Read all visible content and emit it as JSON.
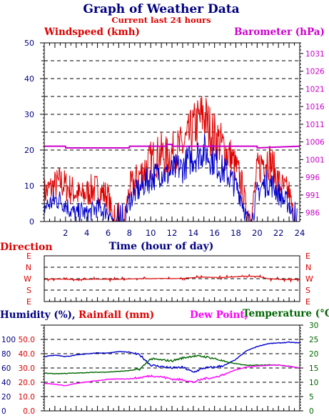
{
  "header": {
    "title": "Graph of Weather Data",
    "subtitle": "Current last 24 hours"
  },
  "colors": {
    "navy": "#000080",
    "wind": "#dd0000",
    "baro": "#cc00cc",
    "humidity": "#0000cc",
    "temp": "#006600",
    "dew": "#ff00ff",
    "grid": "#000000"
  },
  "chart_data": [
    {
      "type": "line",
      "panel": "wind-barometer",
      "left_label": "Windspeed (kmh)",
      "right_label": "Barometer (hPa)",
      "xlabel": "Time (hour of day)",
      "xlim": [
        0,
        24
      ],
      "x_ticks": [
        "2",
        "4",
        "6",
        "8",
        "10",
        "12",
        "14",
        "16",
        "18",
        "20",
        "22",
        "24"
      ],
      "ylim_left": [
        0,
        50
      ],
      "y_ticks_left": [
        "0",
        "10",
        "20",
        "30",
        "40",
        "50"
      ],
      "ylim_right": [
        983.5,
        1034
      ],
      "y_ticks_right": [
        "986",
        "991",
        "996",
        "1001",
        "1006",
        "1011",
        "1016",
        "1021",
        "1026",
        "1031"
      ],
      "series": [
        {
          "name": "Windspeed (kmh)",
          "axis": "left",
          "kind": "gust",
          "x": [
            0,
            0.5,
            1,
            1.5,
            2,
            2.5,
            3,
            3.5,
            4,
            4.5,
            5,
            5.5,
            6,
            6.5,
            7,
            7.5,
            8,
            8.5,
            9,
            9.5,
            10,
            10.5,
            11,
            11.5,
            12,
            12.5,
            13,
            13.5,
            14,
            14.5,
            15,
            15.5,
            16,
            16.5,
            17,
            17.5,
            18,
            18.5,
            19,
            19.5,
            20,
            20.5,
            21,
            21.5,
            22,
            22.5,
            23,
            23.5
          ],
          "values": [
            8,
            9,
            10,
            11,
            10,
            9,
            8,
            7,
            8,
            9,
            9,
            8,
            7,
            0,
            0,
            0,
            9,
            11,
            13,
            15,
            17,
            18,
            19,
            18,
            19,
            20,
            21,
            23,
            26,
            28,
            30,
            26,
            24,
            22,
            20,
            18,
            15,
            11,
            3,
            2,
            14,
            17,
            18,
            15,
            11,
            9,
            8,
            0
          ]
        },
        {
          "name": "Windspeed avg (kmh)",
          "axis": "left",
          "kind": "average",
          "x": [
            0,
            0.5,
            1,
            1.5,
            2,
            2.5,
            3,
            3.5,
            4,
            4.5,
            5,
            5.5,
            6,
            6.5,
            7,
            7.5,
            8,
            8.5,
            9,
            9.5,
            10,
            10.5,
            11,
            11.5,
            12,
            12.5,
            13,
            13.5,
            14,
            14.5,
            15,
            15.5,
            16,
            16.5,
            17,
            17.5,
            18,
            18.5,
            19,
            19.5,
            20,
            20.5,
            21,
            21.5,
            22,
            22.5,
            23,
            23.5
          ],
          "values": [
            4,
            5,
            6,
            6,
            5,
            3,
            2,
            3,
            2,
            3,
            4,
            3,
            3,
            0,
            0,
            0,
            6,
            8,
            9,
            11,
            12,
            13,
            14,
            13,
            14,
            15,
            15,
            17,
            18,
            19,
            20,
            18,
            17,
            15,
            14,
            12,
            10,
            7,
            1,
            0,
            8,
            10,
            11,
            10,
            8,
            6,
            5,
            0
          ]
        },
        {
          "name": "Barometer (hPa)",
          "axis": "right",
          "kind": "pressure",
          "x": [
            0,
            2,
            2.01,
            8,
            8.01,
            11.5,
            11.51,
            12,
            12.01,
            20,
            20.01,
            24
          ],
          "values": [
            1004.8,
            1004.8,
            1004.3,
            1004.3,
            1004.8,
            1004.8,
            1005.3,
            1005.3,
            1004.8,
            1004.8,
            1004.3,
            1004.8
          ]
        }
      ]
    },
    {
      "type": "line",
      "panel": "direction",
      "ylabel": "Direction",
      "xlim": [
        0,
        24
      ],
      "y_categories": [
        "E",
        "S",
        "W",
        "N",
        "E"
      ],
      "series": [
        {
          "name": "Direction",
          "unit": "degrees",
          "x": [
            0,
            1,
            2,
            3,
            4,
            5,
            6,
            7,
            8,
            9,
            10,
            11,
            12,
            13,
            14,
            15,
            16,
            17,
            18,
            19,
            20,
            21,
            22,
            23,
            24
          ],
          "values": [
            265,
            268,
            265,
            262,
            265,
            266,
            265,
            265,
            268,
            270,
            270,
            272,
            270,
            272,
            278,
            282,
            280,
            280,
            285,
            290,
            288,
            270,
            265,
            262,
            265
          ]
        }
      ]
    },
    {
      "type": "line",
      "panel": "humidity-rain-temp",
      "labels": {
        "humidity": "Humidity (%),",
        "rain": "Rainfall (mm)",
        "dew": "Dew Point,",
        "temp": "Temperature (°C)"
      },
      "xlim": [
        0,
        24
      ],
      "ylim_humidity": [
        0,
        120
      ],
      "ticks_humidity": [
        "0",
        "20",
        "40",
        "60",
        "80",
        "100"
      ],
      "ylim_rain": [
        0,
        60
      ],
      "ticks_rain": [
        "0.0",
        "10.0",
        "20.0",
        "30.0",
        "40.0",
        "50.0"
      ],
      "ylim_temp": [
        0,
        30
      ],
      "ticks_temp": [
        "0",
        "5",
        "10",
        "15",
        "20",
        "25",
        "30"
      ],
      "series": [
        {
          "name": "Humidity (%)",
          "axis": "humidity",
          "x": [
            0,
            1,
            2,
            3,
            4,
            5,
            6,
            7,
            8,
            9,
            10,
            11,
            12,
            13,
            14,
            15,
            16,
            17,
            18,
            19,
            20,
            21,
            22,
            23,
            24
          ],
          "values": [
            76,
            78,
            76,
            78,
            80,
            81,
            81,
            83,
            82,
            78,
            64,
            62,
            60,
            61,
            54,
            60,
            61,
            64,
            72,
            84,
            90,
            94,
            95,
            96,
            95
          ]
        },
        {
          "name": "Temperature (°C)",
          "axis": "temp",
          "x": [
            0,
            1,
            2,
            3,
            4,
            5,
            6,
            7,
            8,
            9,
            10,
            11,
            12,
            13,
            14,
            15,
            16,
            17,
            18,
            19,
            20,
            21,
            22,
            23,
            24
          ],
          "values": [
            13.2,
            13.0,
            13.1,
            13.2,
            13.4,
            13.5,
            13.6,
            13.8,
            14.1,
            14.6,
            18.2,
            17.8,
            17.5,
            18.5,
            19.2,
            19.0,
            18.3,
            17.2,
            16.5,
            16.0,
            16.0,
            16.1,
            16.0,
            15.6,
            15.0
          ]
        },
        {
          "name": "Dew Point",
          "axis": "temp",
          "x": [
            0,
            1,
            2,
            3,
            4,
            5,
            6,
            7,
            8,
            9,
            10,
            11,
            12,
            13,
            14,
            15,
            16,
            17,
            18,
            19,
            20,
            21,
            22,
            23,
            24
          ],
          "values": [
            9.7,
            9.3,
            8.8,
            9.6,
            10.1,
            10.6,
            11.0,
            11.2,
            11.2,
            11.6,
            12.3,
            11.9,
            11.1,
            10.9,
            10.0,
            11.3,
            11.7,
            12.9,
            14.4,
            15.3,
            15.7,
            15.9,
            16.0,
            15.6,
            14.9
          ]
        },
        {
          "name": "Rainfall (mm)",
          "axis": "rain",
          "x": [
            0,
            24
          ],
          "values": [
            0,
            0
          ]
        }
      ]
    }
  ]
}
